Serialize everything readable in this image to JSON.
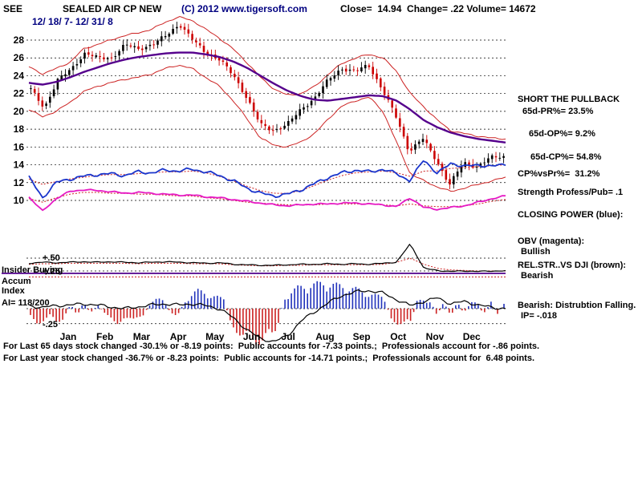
{
  "header": {
    "corner": "SEE",
    "title": "SEALED AIR CP NEW",
    "copyright": "(C) 2012 www.tigersoft.com",
    "stats": "Close=  14.94  Change= .22 Volume= 14672",
    "date_range": "12/ 18/ 7- 12/ 31/ 8"
  },
  "right_panel": {
    "call": "SHORT THE PULLBACK",
    "pr": "65d-PR%= 23.5%",
    "op": "65d-OP%= 9.2%",
    "cp": "65d-CP%= 54.8%",
    "cpvspr": "CP%vsPr%=  31.2%",
    "strength": "Strength Profess/Pub= .1",
    "closing_power": "CLOSING POWER (blue):",
    "obv_label": "OBV (magenta):",
    "obv_status": "Bullish",
    "rs_label": "REL.STR..VS DJI (brown):",
    "rs_status": "Bearish",
    "bearish_line": "Bearish: Distrubtion Falling.",
    "ip": "IP= -.018"
  },
  "left_labels": {
    "plus50": "+.50",
    "insider": "Insider Buying",
    "plus25": "+.25",
    "accum": "Accum",
    "index": "Index",
    "ai": "AI= 118/200",
    "minus25": "-.25"
  },
  "footer": {
    "line1": "For Last 65 days stock changed -30.1% or -8.19 points:  Public accounts for -7.33 points.;  Professionals account for -.86 points.",
    "line2": "For Last year stock changed -36.7% or -8.23 points:  Public accounts for -14.71 points.;  Professionals account for  6.48 points."
  },
  "chart_data": {
    "type": "line",
    "components": [
      "candlestick-price",
      "band-lines",
      "moving-average",
      "closing-power-line",
      "obv-line",
      "professionals-line",
      "accumulation-histogram"
    ],
    "title": "SEALED AIR CP NEW",
    "x_categories": [
      "Jan",
      "Feb",
      "Mar",
      "Apr",
      "May",
      "Jun",
      "Jul",
      "Aug",
      "Sep",
      "Oct",
      "Nov",
      "Dec"
    ],
    "price_axis": {
      "ticks": [
        28,
        26,
        24,
        22,
        20,
        18,
        16,
        14,
        12,
        10
      ],
      "ylim": [
        8.5,
        31.5
      ]
    },
    "sub_axis": {
      "ticks": [
        0.5,
        0.25,
        -0.25
      ]
    },
    "series": {
      "price_close": {
        "name": "daily price (OHLC)",
        "color": "#000000",
        "down_color": "#cc0000",
        "values": [
          22.5,
          20.4,
          23.5,
          24.8,
          26.5,
          26.0,
          26.0,
          27.5,
          27.0,
          27.5,
          28.5,
          29.8,
          28.0,
          26.5,
          25.8,
          24.0,
          21.5,
          18.5,
          17.8,
          18.6,
          20.2,
          21.5,
          23.5,
          24.8,
          24.5,
          25.2,
          22.5,
          19.5,
          15.5,
          17.0,
          14.5,
          11.8,
          14.2,
          13.8,
          14.8,
          14.9
        ]
      },
      "upper_band": {
        "name": "upper band",
        "color": "#cc2222",
        "values": [
          25.0,
          24.2,
          24.8,
          25.5,
          27.0,
          27.5,
          28.0,
          28.5,
          28.8,
          29.2,
          30.0,
          30.6,
          30.2,
          29.2,
          28.2,
          27.0,
          25.5,
          23.8,
          22.5,
          21.8,
          22.0,
          22.8,
          24.2,
          25.4,
          26.0,
          26.4,
          26.0,
          24.5,
          22.0,
          20.5,
          19.0,
          17.8,
          17.5,
          17.2,
          17.0,
          16.9
        ]
      },
      "lower_band": {
        "name": "lower band",
        "color": "#cc2222",
        "values": [
          20.2,
          19.4,
          20.0,
          21.0,
          22.2,
          22.8,
          23.2,
          23.6,
          23.8,
          24.2,
          24.8,
          25.2,
          24.8,
          23.8,
          22.8,
          21.2,
          19.2,
          17.0,
          16.2,
          16.0,
          16.6,
          17.5,
          19.2,
          20.6,
          21.2,
          21.6,
          20.0,
          16.5,
          13.0,
          12.2,
          11.5,
          11.0,
          11.4,
          11.8,
          12.2,
          12.6
        ]
      },
      "ma": {
        "name": "long moving average",
        "color": "#55008c",
        "values": [
          23.2,
          23.0,
          23.3,
          23.8,
          24.4,
          24.9,
          25.4,
          25.8,
          26.1,
          26.3,
          26.5,
          26.6,
          26.6,
          26.4,
          26.1,
          25.6,
          24.9,
          24.0,
          23.1,
          22.3,
          21.7,
          21.3,
          21.2,
          21.4,
          21.6,
          21.8,
          21.7,
          21.2,
          20.2,
          19.0,
          18.2,
          17.6,
          17.2,
          16.9,
          16.7,
          16.5
        ]
      },
      "closing_power": {
        "name": "closing power",
        "color": "#1a35cc",
        "values": [
          12.6,
          10.3,
          12.0,
          12.4,
          12.7,
          12.9,
          13.0,
          12.8,
          13.2,
          13.1,
          13.4,
          13.3,
          13.5,
          13.2,
          12.8,
          12.2,
          11.4,
          10.8,
          10.5,
          10.7,
          11.2,
          11.9,
          12.6,
          13.1,
          13.4,
          13.2,
          13.5,
          13.0,
          12.2,
          14.6,
          13.0,
          14.2,
          13.8,
          14.0,
          13.8,
          14.1
        ]
      },
      "cp_dotted": {
        "name": "closing power ma (dotted)",
        "color": "#cc2222",
        "values": [
          12.4,
          11.8,
          12.1,
          12.4,
          12.6,
          12.8,
          12.9,
          12.9,
          13.0,
          13.1,
          13.2,
          13.2,
          13.3,
          13.1,
          12.7,
          12.2,
          11.6,
          11.1,
          10.8,
          10.8,
          11.1,
          11.7,
          12.3,
          12.8,
          13.1,
          13.2,
          13.3,
          13.1,
          12.7,
          13.3,
          13.3,
          13.6,
          13.7,
          13.8,
          13.9,
          14.0
        ]
      },
      "obv": {
        "name": "OBV",
        "color": "#e61ac4",
        "values": [
          10.4,
          8.8,
          10.2,
          11.0,
          11.2,
          11.1,
          11.0,
          10.8,
          10.9,
          10.8,
          10.7,
          10.6,
          10.6,
          10.4,
          10.3,
          10.1,
          9.9,
          9.7,
          9.5,
          9.4,
          9.5,
          9.6,
          9.6,
          9.7,
          9.7,
          9.6,
          9.5,
          9.3,
          10.3,
          9.2,
          9.0,
          9.2,
          9.4,
          9.8,
          10.2,
          10.5
        ]
      },
      "obv_dotted": {
        "name": "OBV ma (dotted)",
        "color": "#cc2222",
        "values": [
          10.2,
          9.8,
          10.3,
          10.7,
          10.9,
          10.9,
          10.8,
          10.8,
          10.7,
          10.7,
          10.6,
          10.5,
          10.5,
          10.3,
          10.2,
          10.0,
          9.8,
          9.7,
          9.6,
          9.5,
          9.5,
          9.5,
          9.6,
          9.6,
          9.6,
          9.6,
          9.5,
          9.4,
          9.6,
          9.4,
          9.3,
          9.3,
          9.4,
          9.6,
          9.9,
          10.1
        ]
      },
      "professionals": {
        "name": "professional buying",
        "color": "#000000",
        "values": [
          0.4,
          0.42,
          0.41,
          0.42,
          0.43,
          0.42,
          0.43,
          0.42,
          0.41,
          0.42,
          0.43,
          0.42,
          0.41,
          0.4,
          0.41,
          0.38,
          0.37,
          0.36,
          0.36,
          0.37,
          0.38,
          0.38,
          0.39,
          0.38,
          0.39,
          0.38,
          0.4,
          0.42,
          0.78,
          0.3,
          0.26,
          0.24,
          0.25,
          0.24,
          0.25,
          0.25
        ]
      },
      "prof_dotted": {
        "name": "professional buying ma (dotted)",
        "color": "#cc2222",
        "values": [
          0.38,
          0.39,
          0.39,
          0.4,
          0.4,
          0.4,
          0.4,
          0.4,
          0.39,
          0.4,
          0.4,
          0.4,
          0.39,
          0.39,
          0.39,
          0.37,
          0.36,
          0.35,
          0.35,
          0.36,
          0.36,
          0.37,
          0.37,
          0.37,
          0.37,
          0.37,
          0.38,
          0.42,
          0.5,
          0.38,
          0.3,
          0.27,
          0.26,
          0.25,
          0.25,
          0.25
        ]
      },
      "accum_line": {
        "name": "accumulation index line",
        "color": "#000000",
        "values": [
          0.05,
          0.02,
          0.05,
          0.06,
          0.08,
          0.06,
          0.03,
          0.0,
          0.03,
          0.06,
          0.08,
          0.06,
          0.08,
          0.05,
          0.0,
          -0.15,
          -0.35,
          -0.5,
          -0.55,
          -0.45,
          -0.2,
          -0.05,
          0.1,
          0.22,
          0.28,
          0.3,
          0.26,
          0.15,
          0.05,
          0.12,
          0.18,
          0.08,
          0.12,
          0.06,
          0.02,
          0.0
        ]
      }
    },
    "histogram": {
      "name": "Tiger Accumulation Index bars",
      "pos_color": "#2233bb",
      "neg_color": "#cc2222",
      "values": [
        -0.15,
        -0.22,
        -0.18,
        -0.12,
        -0.2,
        -0.15,
        0.08,
        -0.1,
        0.1,
        -0.08,
        0.06,
        -0.05,
        -0.18,
        -0.22,
        -0.15,
        -0.2,
        -0.12,
        -0.1,
        0.1,
        0.15,
        0.12,
        -0.08,
        -0.1,
        0.08,
        0.22,
        0.28,
        0.25,
        0.2,
        0.18,
        0.15,
        -0.25,
        -0.35,
        -0.42,
        -0.48,
        -0.52,
        -0.48,
        -0.42,
        -0.28,
        0.15,
        0.25,
        0.32,
        0.35,
        0.36,
        0.38,
        0.4,
        0.38,
        0.36,
        0.34,
        0.32,
        0.3,
        0.25,
        0.22,
        0.2,
        0.18,
        -0.15,
        -0.22,
        -0.25,
        -0.2,
        0.12,
        0.15,
        0.1,
        -0.1,
        0.12,
        -0.12,
        0.1,
        -0.08,
        0.1,
        0.08,
        -0.1,
        0.12,
        -0.08,
        0.1
      ]
    },
    "baseline_color": "#50008c"
  }
}
